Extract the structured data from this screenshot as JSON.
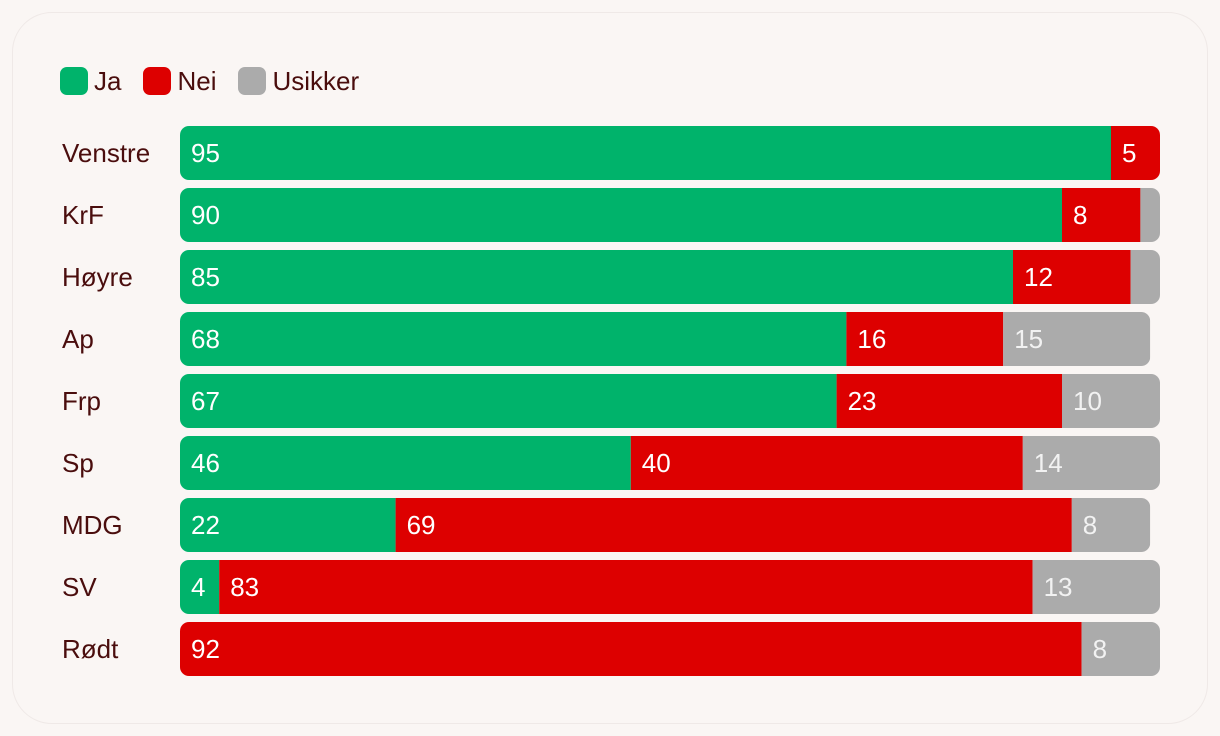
{
  "chart_data": {
    "type": "bar",
    "orientation": "horizontal",
    "stacked": true,
    "title": "",
    "xlabel": "",
    "ylabel": "",
    "xlim": [
      0,
      100
    ],
    "grid": false,
    "legend_position": "top-left",
    "categories": [
      "Venstre",
      "KrF",
      "Høyre",
      "Ap",
      "Frp",
      "Sp",
      "MDG",
      "SV",
      "Rødt"
    ],
    "series": [
      {
        "name": "Ja",
        "color": "#00b36b",
        "label_color": "#ffffff",
        "values": [
          95,
          90,
          85,
          68,
          67,
          46,
          22,
          4,
          0
        ]
      },
      {
        "name": "Nei",
        "color": "#dd0000",
        "label_color": "#ffffff",
        "values": [
          5,
          8,
          12,
          16,
          23,
          40,
          69,
          83,
          92
        ]
      },
      {
        "name": "Usikker",
        "color": "#ababab",
        "label_color": "#f2f2f2",
        "values": [
          0,
          2,
          3,
          15,
          10,
          14,
          8,
          13,
          8
        ]
      }
    ],
    "data_labels": [
      [
        "95",
        "5",
        ""
      ],
      [
        "90",
        "8",
        ""
      ],
      [
        "85",
        "12",
        ""
      ],
      [
        "68",
        "16",
        "15"
      ],
      [
        "67",
        "23",
        "10"
      ],
      [
        "46",
        "40",
        "14"
      ],
      [
        "22",
        "69",
        "8"
      ],
      [
        "4",
        "83",
        "13"
      ],
      [
        "",
        "92",
        "8"
      ]
    ]
  }
}
